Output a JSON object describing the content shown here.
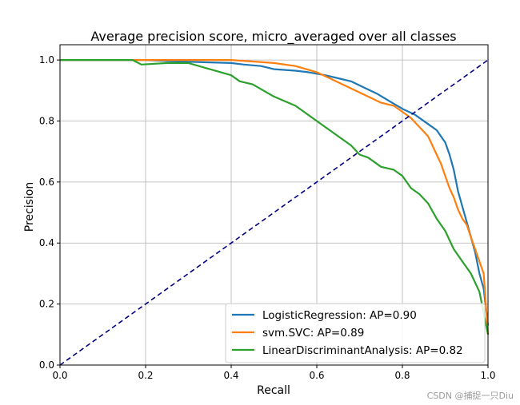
{
  "chart_data": {
    "type": "line",
    "title": "Average precision score, micro_averaged over all classes",
    "xlabel": "Recall",
    "ylabel": "Precision",
    "xlim": [
      0,
      1
    ],
    "ylim": [
      0,
      1.05
    ],
    "xticks": [
      0.0,
      0.2,
      0.4,
      0.6,
      0.8,
      1.0
    ],
    "yticks": [
      0.0,
      0.2,
      0.4,
      0.6,
      0.8,
      1.0
    ],
    "xtick_labels": [
      "0.0",
      "0.2",
      "0.4",
      "0.6",
      "0.8",
      "1.0"
    ],
    "ytick_labels": [
      "0.0",
      "0.2",
      "0.4",
      "0.6",
      "0.8",
      "1.0"
    ],
    "grid": true,
    "legend_position": "lower-right",
    "series": [
      {
        "name": "LogisticRegression: AP=0.90",
        "color": "#1f77b4",
        "x": [
          0.0,
          0.1,
          0.2,
          0.28,
          0.4,
          0.43,
          0.47,
          0.5,
          0.55,
          0.58,
          0.6,
          0.62,
          0.65,
          0.68,
          0.71,
          0.74,
          0.77,
          0.8,
          0.83,
          0.86,
          0.88,
          0.9,
          0.91,
          0.92,
          0.93,
          0.94,
          0.95,
          0.96,
          0.97,
          0.98,
          0.99,
          1.0
        ],
        "y": [
          1.0,
          1.0,
          1.0,
          0.995,
          0.99,
          0.985,
          0.98,
          0.97,
          0.965,
          0.96,
          0.955,
          0.95,
          0.94,
          0.93,
          0.91,
          0.89,
          0.865,
          0.84,
          0.82,
          0.79,
          0.77,
          0.73,
          0.69,
          0.64,
          0.57,
          0.52,
          0.47,
          0.42,
          0.37,
          0.3,
          0.25,
          0.13
        ]
      },
      {
        "name": "svm.SVC: AP=0.89",
        "color": "#ff7f0e",
        "x": [
          0.0,
          0.1,
          0.2,
          0.3,
          0.4,
          0.45,
          0.5,
          0.55,
          0.6,
          0.63,
          0.66,
          0.69,
          0.72,
          0.75,
          0.78,
          0.8,
          0.82,
          0.84,
          0.86,
          0.87,
          0.88,
          0.89,
          0.9,
          0.91,
          0.92,
          0.93,
          0.94,
          0.95,
          0.96,
          0.97,
          0.98,
          0.99,
          1.0
        ],
        "y": [
          1.0,
          1.0,
          1.0,
          1.0,
          1.0,
          0.995,
          0.99,
          0.98,
          0.96,
          0.94,
          0.92,
          0.9,
          0.88,
          0.86,
          0.85,
          0.83,
          0.81,
          0.78,
          0.75,
          0.72,
          0.69,
          0.66,
          0.62,
          0.58,
          0.55,
          0.51,
          0.48,
          0.46,
          0.42,
          0.38,
          0.34,
          0.3,
          0.1
        ]
      },
      {
        "name": "LinearDiscriminantAnalysis: AP=0.82",
        "color": "#2ca02c",
        "x": [
          0.0,
          0.17,
          0.19,
          0.25,
          0.3,
          0.35,
          0.4,
          0.42,
          0.45,
          0.5,
          0.55,
          0.58,
          0.6,
          0.62,
          0.65,
          0.68,
          0.7,
          0.72,
          0.75,
          0.78,
          0.8,
          0.82,
          0.84,
          0.86,
          0.88,
          0.9,
          0.92,
          0.94,
          0.96,
          0.98,
          1.0
        ],
        "y": [
          1.0,
          1.0,
          0.985,
          0.99,
          0.99,
          0.97,
          0.95,
          0.93,
          0.92,
          0.88,
          0.85,
          0.82,
          0.8,
          0.78,
          0.75,
          0.72,
          0.69,
          0.68,
          0.65,
          0.64,
          0.62,
          0.58,
          0.56,
          0.53,
          0.48,
          0.44,
          0.38,
          0.34,
          0.3,
          0.24,
          0.1
        ]
      },
      {
        "name": "",
        "color": "#000080",
        "dashed": true,
        "x": [
          0.0,
          1.0
        ],
        "y": [
          0.0,
          1.0
        ]
      }
    ]
  },
  "watermark": "CSDN @捕捉一只Diu"
}
